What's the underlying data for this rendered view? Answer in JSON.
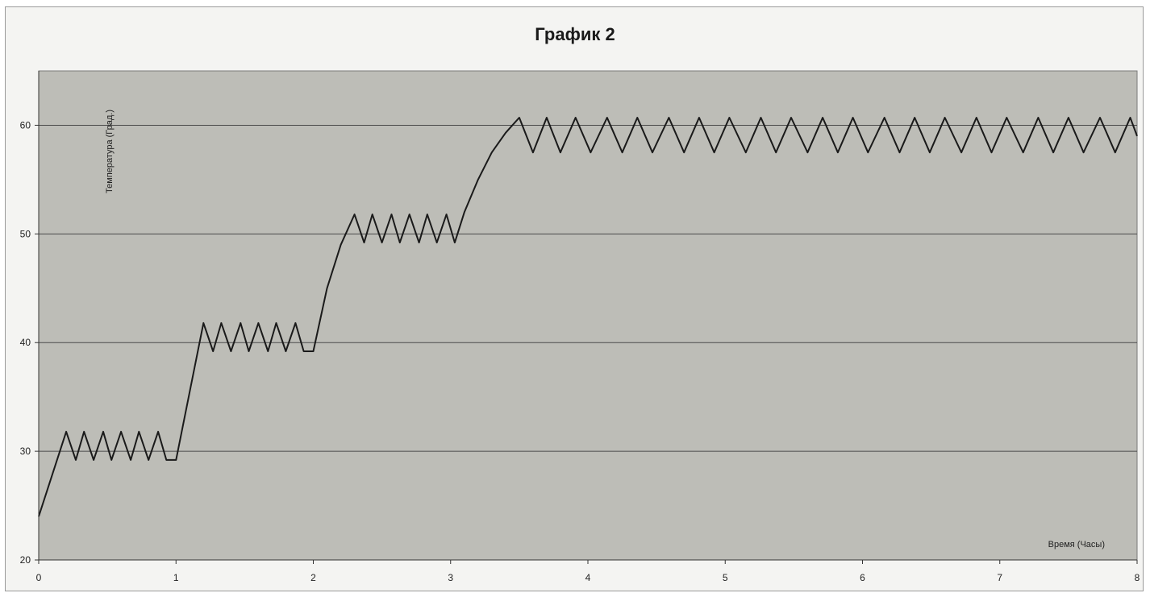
{
  "chart_data": {
    "type": "line",
    "title": "График 2",
    "xlabel": "Время (Часы)",
    "ylabel": "Температура (Град.)",
    "xlim": [
      0,
      8
    ],
    "ylim": [
      20,
      65
    ],
    "x_ticks": [
      0,
      1,
      2,
      3,
      4,
      5,
      6,
      7,
      8
    ],
    "y_ticks": [
      20,
      30,
      40,
      50,
      60
    ],
    "grid": "horizontal",
    "legend": "none",
    "colors": {
      "plot_background": "#bdbdb7",
      "line": "#1a1a1a",
      "gridline": "#4a4a4a"
    },
    "series": [
      {
        "x": [
          0,
          0.2,
          0.27,
          0.33,
          0.4,
          0.47,
          0.53,
          0.6,
          0.67,
          0.73,
          0.8,
          0.87,
          0.93,
          1.0,
          1.2,
          1.27,
          1.33,
          1.4,
          1.47,
          1.53,
          1.6,
          1.67,
          1.73,
          1.8,
          1.87,
          1.93,
          2.0,
          2.1,
          2.2,
          2.3,
          2.37,
          2.43,
          2.5,
          2.57,
          2.63,
          2.7,
          2.77,
          2.83,
          2.9,
          2.97,
          3.03,
          3.1,
          3.2,
          3.3,
          3.4,
          3.5,
          3.6,
          3.7,
          3.8,
          3.91,
          4.02,
          4.14,
          4.25,
          4.36,
          4.47,
          4.59,
          4.7,
          4.81,
          4.92,
          5.03,
          5.15,
          5.26,
          5.37,
          5.48,
          5.6,
          5.71,
          5.82,
          5.93,
          6.04,
          6.16,
          6.27,
          6.38,
          6.49,
          6.6,
          6.72,
          6.83,
          6.94,
          7.05,
          7.17,
          7.28,
          7.39,
          7.5,
          7.61,
          7.73,
          7.84,
          7.95,
          8.0
        ],
        "y": [
          24,
          31.8,
          29.2,
          31.8,
          29.2,
          31.8,
          29.2,
          31.8,
          29.2,
          31.8,
          29.2,
          31.8,
          29.2,
          29.2,
          41.8,
          39.2,
          41.8,
          39.2,
          41.8,
          39.2,
          41.8,
          39.2,
          41.8,
          39.2,
          41.8,
          39.2,
          39.2,
          45,
          49,
          51.8,
          49.2,
          51.8,
          49.2,
          51.8,
          49.2,
          51.8,
          49.2,
          51.8,
          49.2,
          51.8,
          49.2,
          52,
          55,
          57.5,
          59.3,
          60.7,
          57.5,
          60.7,
          57.5,
          60.7,
          57.5,
          60.7,
          57.5,
          60.7,
          57.5,
          60.7,
          57.5,
          60.7,
          57.5,
          60.7,
          57.5,
          60.7,
          57.5,
          60.7,
          57.5,
          60.7,
          57.5,
          60.7,
          57.5,
          60.7,
          57.5,
          60.7,
          57.5,
          60.7,
          57.5,
          60.7,
          57.5,
          60.7,
          57.5,
          60.7,
          57.5,
          60.7,
          57.5,
          60.7,
          57.5,
          60.7,
          59
        ]
      }
    ]
  }
}
